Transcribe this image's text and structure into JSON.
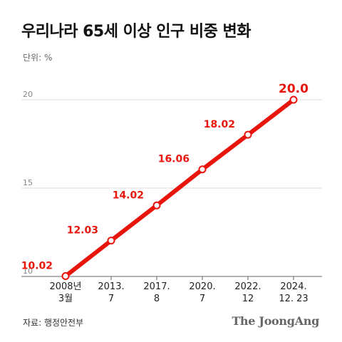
{
  "title": "우리나라 65세 이상 인구 비중 변화",
  "unit_label": "단위: %",
  "source": "자료: 행정안전부",
  "logo": "The JoongAng",
  "colors": {
    "line": "#e8150d",
    "accent_text": "#e8150d",
    "grid": "#dddddd",
    "axis": "#666666"
  },
  "chart_data": {
    "type": "line",
    "title": "우리나라 65세 이상 인구 비중 변화",
    "xlabel": "",
    "ylabel": "",
    "unit": "%",
    "ylim": [
      10,
      20
    ],
    "yticks": [
      10,
      15,
      20
    ],
    "grid": true,
    "categories": [
      [
        "2008년",
        "3월"
      ],
      [
        "2013.",
        "7"
      ],
      [
        "2017.",
        "8"
      ],
      [
        "2020.",
        "7"
      ],
      [
        "2022.",
        "12"
      ],
      [
        "2024.",
        "12. 23"
      ]
    ],
    "series": [
      {
        "values": [
          10.02,
          12.03,
          14.02,
          16.06,
          18.02,
          20.0
        ],
        "labels": [
          "10.02",
          "12.03",
          "14.02",
          "16.06",
          "18.02",
          "20.0"
        ]
      }
    ]
  }
}
